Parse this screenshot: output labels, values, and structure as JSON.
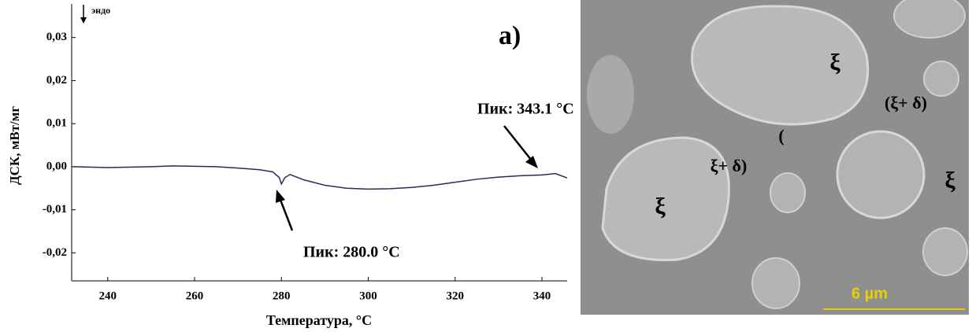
{
  "chart_data": {
    "type": "line",
    "y_label": "ДСК, мВт/мг",
    "x_label": "Температура, °C",
    "annotations": [
      "эндо",
      "а)",
      "Пик: 280.0 °C",
      "Пик: 343.1 °C"
    ],
    "color": "#2b2b5c",
    "x": [
      232,
      240,
      250,
      255,
      260,
      265,
      270,
      275,
      278,
      279.5,
      280.0,
      280.8,
      282,
      285,
      290,
      295,
      300,
      305,
      310,
      315,
      320,
      325,
      330,
      335,
      340,
      343.1,
      345.8
    ],
    "values": [
      0.0,
      -0.0002,
      0.0,
      0.0002,
      0.0001,
      0.0,
      -0.0003,
      -0.0007,
      -0.0012,
      -0.0025,
      -0.004,
      -0.0025,
      -0.0018,
      -0.003,
      -0.0043,
      -0.005,
      -0.0052,
      -0.0051,
      -0.0048,
      -0.0043,
      -0.0036,
      -0.0029,
      -0.0024,
      -0.0021,
      -0.0019,
      -0.0016,
      -0.0026
    ],
    "xlim": [
      231.7,
      345.8
    ],
    "ylim": [
      -0.0265,
      0.0378
    ],
    "xticks": [
      240,
      260,
      280,
      300,
      320,
      340
    ],
    "yticks": [
      {
        "value": 0.03,
        "label": "0,03"
      },
      {
        "value": 0.02,
        "label": "0,02"
      },
      {
        "value": 0.01,
        "label": "0,01"
      },
      {
        "value": 0,
        "label": "0,00"
      },
      {
        "value": -0.01,
        "label": "-0,01"
      },
      {
        "value": -0.02,
        "label": "-0,02"
      }
    ]
  },
  "micrograph": {
    "labels": [
      "ξ",
      "(ξ+ δ)",
      "(",
      "ξ+ δ)",
      "ξ",
      "ξ"
    ],
    "scale_bar": "6 µm"
  }
}
